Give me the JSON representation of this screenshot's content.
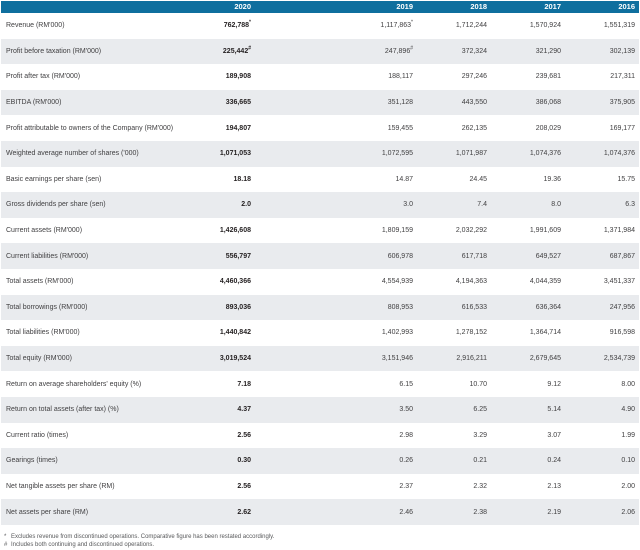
{
  "colors": {
    "header_bg": "#0f6f9e",
    "header_text": "#ffffff",
    "row_alt_bg": "#e9ebee",
    "body_text": "#414042",
    "bold_text": "#231f20",
    "footnote_text": "#58595b"
  },
  "table": {
    "header": {
      "label": "",
      "years": [
        "2020",
        "2019",
        "2018",
        "2017",
        "2016"
      ]
    },
    "rows": [
      {
        "label": "Revenue (RM'000)",
        "values": [
          "762,788",
          "1,117,863",
          "1,712,244",
          "1,570,924",
          "1,551,319"
        ],
        "sups": [
          "*",
          "*",
          "",
          "",
          ""
        ]
      },
      {
        "label": "Profit before taxation (RM'000)",
        "values": [
          "225,442",
          "247,896",
          "372,324",
          "321,290",
          "302,139"
        ],
        "sups": [
          "#",
          "#",
          "",
          "",
          ""
        ]
      },
      {
        "label": "Profit after tax (RM'000)",
        "values": [
          "189,908",
          "188,117",
          "297,246",
          "239,681",
          "217,311"
        ],
        "sups": [
          "",
          "",
          "",
          "",
          ""
        ]
      },
      {
        "label": "EBITDA (RM'000)",
        "values": [
          "336,665",
          "351,128",
          "443,550",
          "386,068",
          "375,905"
        ],
        "sups": [
          "",
          "",
          "",
          "",
          ""
        ]
      },
      {
        "label": "Profit attributable to owners of the Company (RM'000)",
        "values": [
          "194,807",
          "159,455",
          "262,135",
          "208,029",
          "169,177"
        ],
        "sups": [
          "",
          "",
          "",
          "",
          ""
        ]
      },
      {
        "label": "Weighted average number of shares ('000)",
        "values": [
          "1,071,053",
          "1,072,595",
          "1,071,987",
          "1,074,376",
          "1,074,376"
        ],
        "sups": [
          "",
          "",
          "",
          "",
          ""
        ]
      },
      {
        "label": "Basic earnings per share (sen)",
        "values": [
          "18.18",
          "14.87",
          "24.45",
          "19.36",
          "15.75"
        ],
        "sups": [
          "",
          "",
          "",
          "",
          ""
        ]
      },
      {
        "label": "Gross dividends per share (sen)",
        "values": [
          "2.0",
          "3.0",
          "7.4",
          "8.0",
          "6.3"
        ],
        "sups": [
          "",
          "",
          "",
          "",
          ""
        ]
      },
      {
        "label": "Current assets (RM'000)",
        "values": [
          "1,426,608",
          "1,809,159",
          "2,032,292",
          "1,991,609",
          "1,371,984"
        ],
        "sups": [
          "",
          "",
          "",
          "",
          ""
        ]
      },
      {
        "label": "Current liabilities (RM'000)",
        "values": [
          "556,797",
          "606,978",
          "617,718",
          "649,527",
          "687,867"
        ],
        "sups": [
          "",
          "",
          "",
          "",
          ""
        ]
      },
      {
        "label": "Total assets (RM'000)",
        "values": [
          "4,460,366",
          "4,554,939",
          "4,194,363",
          "4,044,359",
          "3,451,337"
        ],
        "sups": [
          "",
          "",
          "",
          "",
          ""
        ]
      },
      {
        "label": "Total borrowings (RM'000)",
        "values": [
          "893,036",
          "808,953",
          "616,533",
          "636,364",
          "247,956"
        ],
        "sups": [
          "",
          "",
          "",
          "",
          ""
        ]
      },
      {
        "label": "Total liabilities (RM'000)",
        "values": [
          "1,440,842",
          "1,402,993",
          "1,278,152",
          "1,364,714",
          "916,598"
        ],
        "sups": [
          "",
          "",
          "",
          "",
          ""
        ]
      },
      {
        "label": "Total equity (RM'000)",
        "values": [
          "3,019,524",
          "3,151,946",
          "2,916,211",
          "2,679,645",
          "2,534,739"
        ],
        "sups": [
          "",
          "",
          "",
          "",
          ""
        ]
      },
      {
        "label": "Return on average shareholders' equity (%)",
        "values": [
          "7.18",
          "6.15",
          "10.70",
          "9.12",
          "8.00"
        ],
        "sups": [
          "",
          "",
          "",
          "",
          ""
        ]
      },
      {
        "label": "Return on total assets (after tax) (%)",
        "values": [
          "4.37",
          "3.50",
          "6.25",
          "5.14",
          "4.90"
        ],
        "sups": [
          "",
          "",
          "",
          "",
          ""
        ]
      },
      {
        "label": "Current ratio (times)",
        "values": [
          "2.56",
          "2.98",
          "3.29",
          "3.07",
          "1.99"
        ],
        "sups": [
          "",
          "",
          "",
          "",
          ""
        ]
      },
      {
        "label": "Gearings (times)",
        "values": [
          "0.30",
          "0.26",
          "0.21",
          "0.24",
          "0.10"
        ],
        "sups": [
          "",
          "",
          "",
          "",
          ""
        ]
      },
      {
        "label": "Net tangible assets per share (RM)",
        "values": [
          "2.56",
          "2.37",
          "2.32",
          "2.13",
          "2.00"
        ],
        "sups": [
          "",
          "",
          "",
          "",
          ""
        ]
      },
      {
        "label": "Net assets per share (RM)",
        "values": [
          "2.62",
          "2.46",
          "2.38",
          "2.19",
          "2.06"
        ],
        "sups": [
          "",
          "",
          "",
          "",
          ""
        ]
      }
    ]
  },
  "footnotes": [
    {
      "marker": "*",
      "text": "Excludes revenue from discontinued operations. Comparative figure has been restated accordingly."
    },
    {
      "marker": "#",
      "text": "Includes both continuing and discontinued operations."
    }
  ]
}
